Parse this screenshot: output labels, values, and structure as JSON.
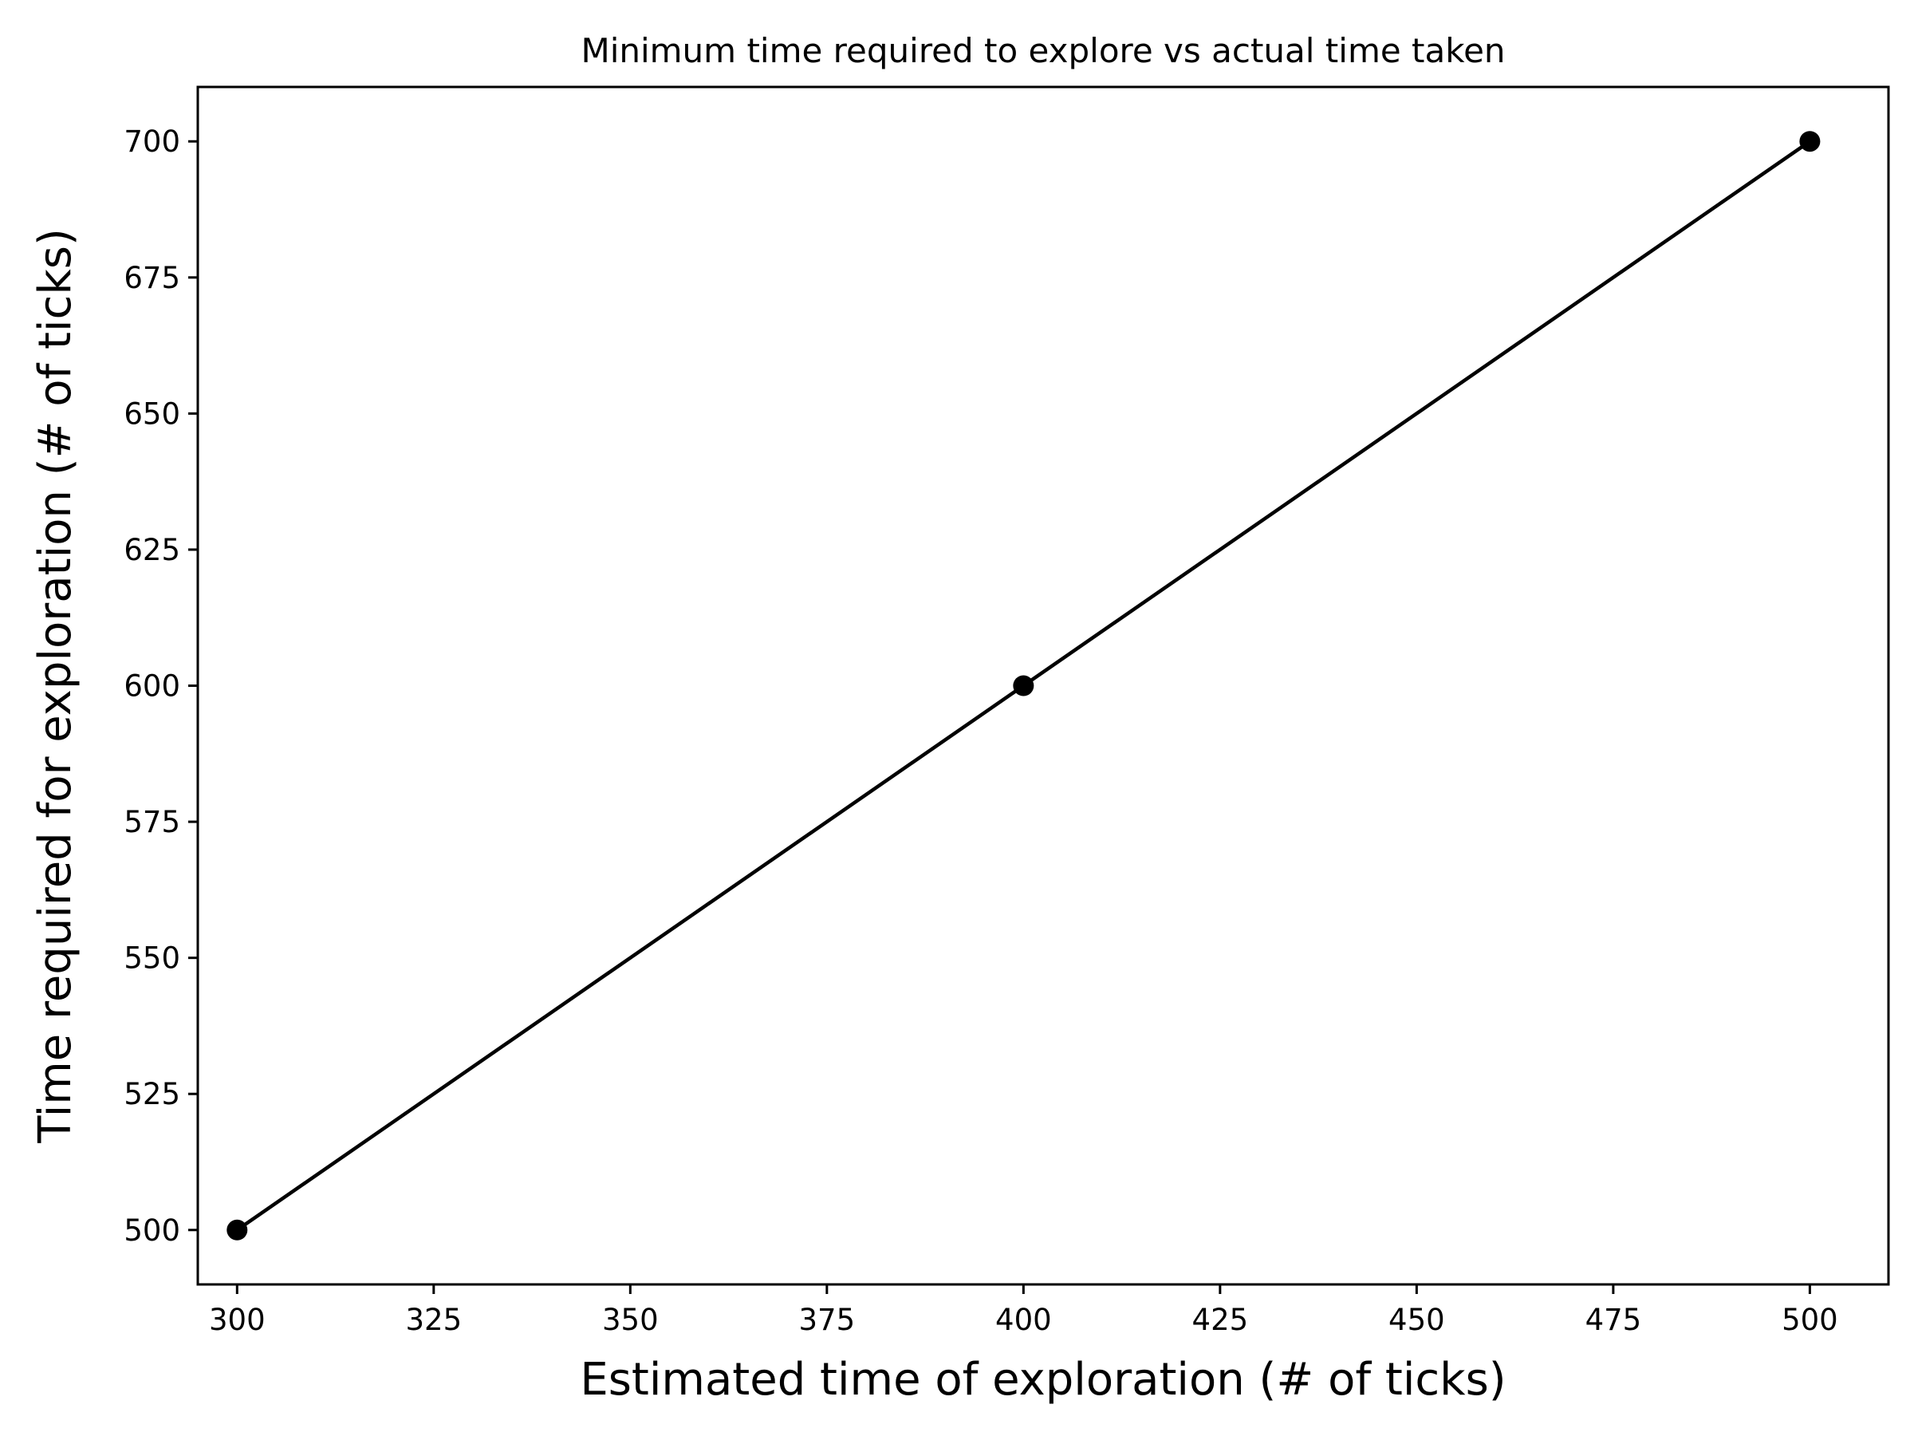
{
  "chart_data": {
    "type": "line",
    "title": "Minimum time required to explore vs actual time taken",
    "xlabel": "Estimated time of exploration (# of ticks)",
    "ylabel": "Time required for exploration (# of ticks)",
    "xlim": [
      295,
      510
    ],
    "ylim": [
      490,
      710
    ],
    "x_ticks": [
      300,
      325,
      350,
      375,
      400,
      425,
      450,
      475,
      500
    ],
    "y_ticks": [
      500,
      525,
      550,
      575,
      600,
      625,
      650,
      675,
      700
    ],
    "grid": false,
    "series": [
      {
        "x": [
          300,
          400,
          500
        ],
        "y": [
          500,
          600,
          700
        ],
        "color": "#000000",
        "marker": "circle"
      }
    ]
  }
}
